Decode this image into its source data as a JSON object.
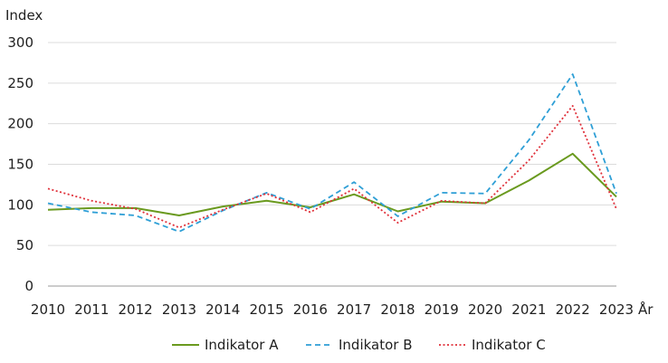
{
  "chart_data": {
    "type": "line",
    "y_unit_label": "Index",
    "x_unit_label": "År",
    "x": [
      "2010",
      "2011",
      "2012",
      "2013",
      "2014",
      "2015",
      "2016",
      "2017",
      "2018",
      "2019",
      "2020",
      "2021",
      "2022",
      "2023"
    ],
    "ylim": [
      0,
      300
    ],
    "yticks": [
      0,
      50,
      100,
      150,
      200,
      250,
      300
    ],
    "grid": "horizontal",
    "legend_position": "bottom",
    "series": [
      {
        "name": "Indikator A",
        "color": "#6a9a1f",
        "dash": "solid",
        "values": [
          94,
          96,
          96,
          87,
          98,
          105,
          97,
          113,
          92,
          104,
          102,
          130,
          163,
          110
        ]
      },
      {
        "name": "Indikator B",
        "color": "#2e9fd6",
        "dash": "dashed",
        "values": [
          102,
          91,
          87,
          67,
          93,
          115,
          95,
          128,
          86,
          115,
          114,
          180,
          261,
          114
        ]
      },
      {
        "name": "Indikator C",
        "color": "#e0303a",
        "dash": "dotted",
        "values": [
          120,
          105,
          95,
          72,
          94,
          114,
          91,
          120,
          78,
          105,
          102,
          155,
          222,
          95
        ]
      }
    ]
  }
}
